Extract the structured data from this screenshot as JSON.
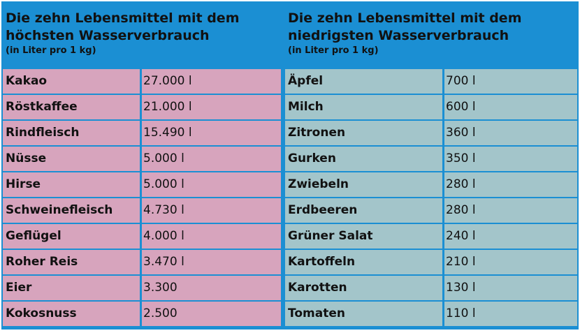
{
  "left_table": {
    "title": "Die zehn Lebensmittel mit dem\nhöchsten Wasserverbrauch",
    "subtitle": "(in Liter pro 1 kg)",
    "rows": [
      {
        "name": "Kakao",
        "value": "27.000 l"
      },
      {
        "name": "Röstkaffee",
        "value": "21.000 l"
      },
      {
        "name": "Rindfleisch",
        "value": "15.490 l"
      },
      {
        "name": "Nüsse",
        "value": "5.000 l"
      },
      {
        "name": "Hirse",
        "value": "5.000 l"
      },
      {
        "name": "Schweinefleisch",
        "value": "4.730 l"
      },
      {
        "name": "Geflügel",
        "value": "4.000 l"
      },
      {
        "name": "Roher Reis",
        "value": "3.470 l"
      },
      {
        "name": "Eier",
        "value": "3.300"
      },
      {
        "name": "Kokosnuss",
        "value": "2.500"
      }
    ]
  },
  "right_table": {
    "title": "Die zehn Lebensmittel mit dem\nniedrigsten Wasserverbrauch",
    "subtitle": "(in Liter pro 1 kg)",
    "rows": [
      {
        "name": "Äpfel",
        "value": "700 l"
      },
      {
        "name": "Milch",
        "value": "600 l"
      },
      {
        "name": "Zitronen",
        "value": "360 l"
      },
      {
        "name": "Gurken",
        "value": "350 l"
      },
      {
        "name": "Zwiebeln",
        "value": "280 l"
      },
      {
        "name": "Erdbeeren",
        "value": "280 l"
      },
      {
        "name": "Grüner Salat",
        "value": "240 l"
      },
      {
        "name": "Kartoffeln",
        "value": "210 l"
      },
      {
        "name": "Karotten",
        "value": "130 l"
      },
      {
        "name": "Tomaten",
        "value": "110 l"
      }
    ]
  },
  "colors": {
    "frame": "#1b8fd3",
    "left_cells": "#d7a4bd",
    "right_cells": "#a3c5ca"
  }
}
